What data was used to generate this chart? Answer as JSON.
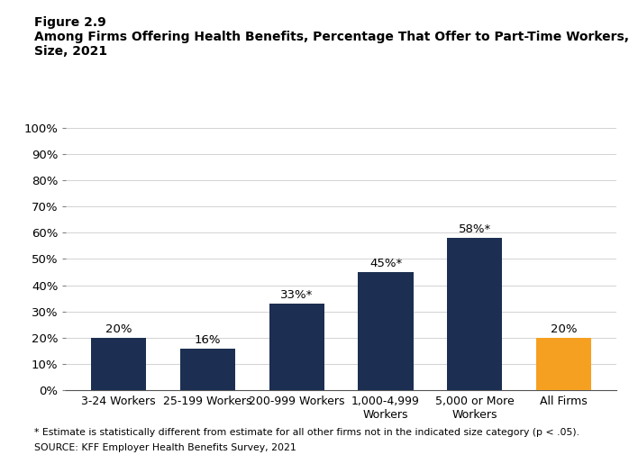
{
  "figure_label": "Figure 2.9",
  "title_line1": "Among Firms Offering Health Benefits, Percentage That Offer to Part-Time Workers, by Firm",
  "title_line2": "Size, 2021",
  "categories": [
    "3-24 Workers",
    "25-199 Workers",
    "200-999 Workers",
    "1,000-4,999\nWorkers",
    "5,000 or More\nWorkers",
    "All Firms"
  ],
  "values": [
    20,
    16,
    33,
    45,
    58,
    20
  ],
  "bar_colors": [
    "#1c2f52",
    "#1c2f52",
    "#1c2f52",
    "#1c2f52",
    "#1c2f52",
    "#f5a020"
  ],
  "bar_labels": [
    "20%",
    "16%",
    "33%*",
    "45%*",
    "58%*",
    "20%"
  ],
  "ylim": [
    0,
    100
  ],
  "yticks": [
    0,
    10,
    20,
    30,
    40,
    50,
    60,
    70,
    80,
    90,
    100
  ],
  "footnote1": "* Estimate is statistically different from estimate for all other firms not in the indicated size category (p < .05).",
  "footnote2": "SOURCE: KFF Employer Health Benefits Survey, 2021",
  "background_color": "#ffffff"
}
